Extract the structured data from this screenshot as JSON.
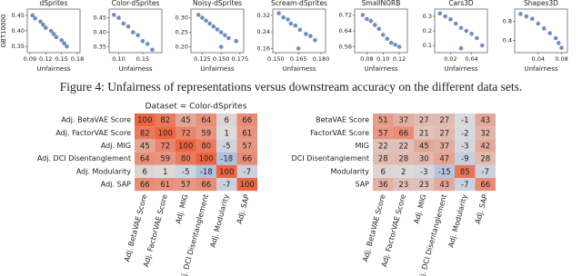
{
  "caption": "Figure 4: Unfairness of representations versus downstream accuracy on the different data sets.",
  "chart_data": [
    {
      "type": "scatter",
      "title": "dSprites",
      "xlabel": "Unfairness",
      "ylabel": "GBT10000",
      "color": "#4c72b0",
      "x": [
        0.095,
        0.1,
        0.11,
        0.115,
        0.12,
        0.13,
        0.135,
        0.14,
        0.15,
        0.155,
        0.16
      ],
      "y": [
        0.45,
        0.44,
        0.43,
        0.42,
        0.41,
        0.4,
        0.39,
        0.38,
        0.37,
        0.36,
        0.35
      ],
      "xlim": [
        0.085,
        0.185
      ],
      "ylim": [
        0.33,
        0.47
      ],
      "xticks": [
        0.09,
        0.12,
        0.15,
        0.18
      ],
      "yticks": [
        {
          "value": 0.35,
          "label": "0.35"
        },
        {
          "value": 0.4,
          "label": "0.40"
        },
        0.45
      ]
    },
    {
      "type": "scatter",
      "title": "Color-dSprites",
      "xlabel": "Unfairness",
      "color": "#4c72b0",
      "x": [
        0.09,
        0.1,
        0.11,
        0.12,
        0.13,
        0.14,
        0.15,
        0.16,
        0.17
      ],
      "y": [
        0.46,
        0.45,
        0.43,
        0.42,
        0.4,
        0.39,
        0.37,
        0.36,
        0.34
      ],
      "xlim": [
        0.08,
        0.19
      ],
      "ylim": [
        0.33,
        0.48
      ],
      "xticks": [
        {
          "value": 0.1,
          "label": "0.10"
        },
        0.15
      ],
      "yticks": [
        0.35,
        {
          "value": 0.4,
          "label": "0.40"
        },
        0.45
      ]
    },
    {
      "type": "scatter",
      "title": "Noisy-dSprites",
      "xlabel": "Unfairness",
      "color": "#4c72b0",
      "x": [
        0.12,
        0.125,
        0.13,
        0.135,
        0.14,
        0.145,
        0.15,
        0.155,
        0.16,
        0.15,
        0.17
      ],
      "y": [
        0.31,
        0.3,
        0.29,
        0.28,
        0.27,
        0.26,
        0.25,
        0.24,
        0.23,
        0.2,
        0.22
      ],
      "xlim": [
        0.11,
        0.18
      ],
      "ylim": [
        0.18,
        0.33
      ],
      "xticks": [
        0.125,
        {
          "value": 0.15,
          "label": "0.150"
        },
        0.175
      ],
      "yticks": [
        {
          "value": 0.2,
          "label": "0.20"
        },
        0.25,
        {
          "value": 0.3,
          "label": "0.30"
        }
      ]
    },
    {
      "type": "scatter",
      "title": "Scream-dSprites",
      "xlabel": "Unfairness",
      "color": "#4c72b0",
      "x": [
        0.152,
        0.155,
        0.158,
        0.16,
        0.163,
        0.166,
        0.17,
        0.173,
        0.176,
        0.165
      ],
      "y": [
        0.33,
        0.31,
        0.3,
        0.28,
        0.27,
        0.25,
        0.23,
        0.22,
        0.2,
        0.16
      ],
      "xlim": [
        0.148,
        0.183
      ],
      "ylim": [
        0.14,
        0.35
      ],
      "xticks": [
        {
          "value": 0.15,
          "label": "0.150"
        },
        0.165,
        {
          "value": 0.18,
          "label": "0.180"
        }
      ],
      "yticks": [
        0.16,
        0.24,
        0.32
      ]
    },
    {
      "type": "scatter",
      "title": "SmallNORB",
      "xlabel": "Unfairness",
      "color": "#4c72b0",
      "x": [
        0.075,
        0.08,
        0.085,
        0.09,
        0.095,
        0.1,
        0.105,
        0.11,
        0.115,
        0.12
      ],
      "y": [
        0.72,
        0.7,
        0.69,
        0.67,
        0.65,
        0.62,
        0.6,
        0.58,
        0.57,
        0.56
      ],
      "xlim": [
        0.065,
        0.13
      ],
      "ylim": [
        0.53,
        0.75
      ],
      "xticks": [
        0.08,
        {
          "value": 0.1,
          "label": "0.10"
        },
        0.12
      ],
      "yticks": [
        0.56,
        0.64,
        0.72
      ]
    },
    {
      "type": "scatter",
      "title": "Cars3D",
      "xlabel": "Unfairness",
      "color": "#4c72b0",
      "x": [
        0.01,
        0.015,
        0.02,
        0.025,
        0.03,
        0.035,
        0.04,
        0.045,
        0.05,
        0.03
      ],
      "y": [
        0.32,
        0.3,
        0.28,
        0.25,
        0.22,
        0.2,
        0.18,
        0.15,
        0.1,
        0.08
      ],
      "xlim": [
        0.005,
        0.055
      ],
      "ylim": [
        0.05,
        0.35
      ],
      "xticks": [
        0.02,
        0.04
      ],
      "yticks": [
        0.1,
        0.2,
        0.3
      ]
    },
    {
      "type": "scatter",
      "title": "Shapes3D",
      "xlabel": "Unfairness",
      "color": "#4c72b0",
      "x": [
        0.01,
        0.02,
        0.03,
        0.04,
        0.05,
        0.06,
        0.07,
        0.075,
        0.08
      ],
      "y": [
        0.95,
        0.9,
        0.85,
        0.75,
        0.65,
        0.55,
        0.45,
        0.35,
        0.25
      ],
      "xlim": [
        0,
        0.09
      ],
      "ylim": [
        0.15,
        1.05
      ],
      "xticks": [
        0.04,
        0.08
      ],
      "yticks": [
        0.4,
        0.8
      ]
    },
    {
      "type": "heatmap",
      "title": "Dataset = Color-dSprites",
      "colors": [
        "#7a9de0",
        "#dcdcdc",
        "#ee6340"
      ],
      "color_range": [
        -40,
        100
      ],
      "x_categories": [
        "Adj. BetaVAE Score",
        "Adj. FactorVAE Score",
        "Adj. MIG",
        "Adj. DCI Disentanglement",
        "Adj. Modularity",
        "Adj. SAP"
      ],
      "y_categories": [
        "Adj. BetaVAE Score",
        "Adj. FactorVAE Score",
        "Adj. MIG",
        "Adj. DCI Disentanglement",
        "Adj. Modularity",
        "Adj. SAP"
      ],
      "values": [
        [
          100,
          82,
          45,
          64,
          6,
          66
        ],
        [
          82,
          100,
          72,
          59,
          1,
          61
        ],
        [
          45,
          72,
          100,
          80,
          -5,
          57
        ],
        [
          64,
          59,
          80,
          100,
          -18,
          66
        ],
        [
          6,
          1,
          -5,
          -18,
          100,
          -7
        ],
        [
          66,
          61,
          57,
          66,
          -7,
          100
        ]
      ]
    },
    {
      "type": "heatmap",
      "colors": [
        "#7a9de0",
        "#dcdcdc",
        "#ee6340"
      ],
      "color_range": [
        -40,
        100
      ],
      "x_categories": [
        "Adj. BetaVAE Score",
        "Adj. FactorVAE Score",
        "Adj. MIG",
        "Adj. DCI Disentanglement",
        "Adj. Modularity",
        "Adj. SAP"
      ],
      "y_categories": [
        "BetaVAE Score",
        "FactorVAE Score",
        "MIG",
        "DCI Disentanglement",
        "Modularity",
        "SAP"
      ],
      "values": [
        [
          51,
          37,
          27,
          27,
          -1,
          43
        ],
        [
          57,
          66,
          21,
          27,
          -2,
          32
        ],
        [
          22,
          22,
          45,
          37,
          -3,
          42
        ],
        [
          28,
          28,
          30,
          47,
          -9,
          28
        ],
        [
          6,
          2,
          -3,
          -15,
          85,
          -7
        ],
        [
          36,
          23,
          23,
          43,
          -7,
          66
        ]
      ]
    }
  ]
}
